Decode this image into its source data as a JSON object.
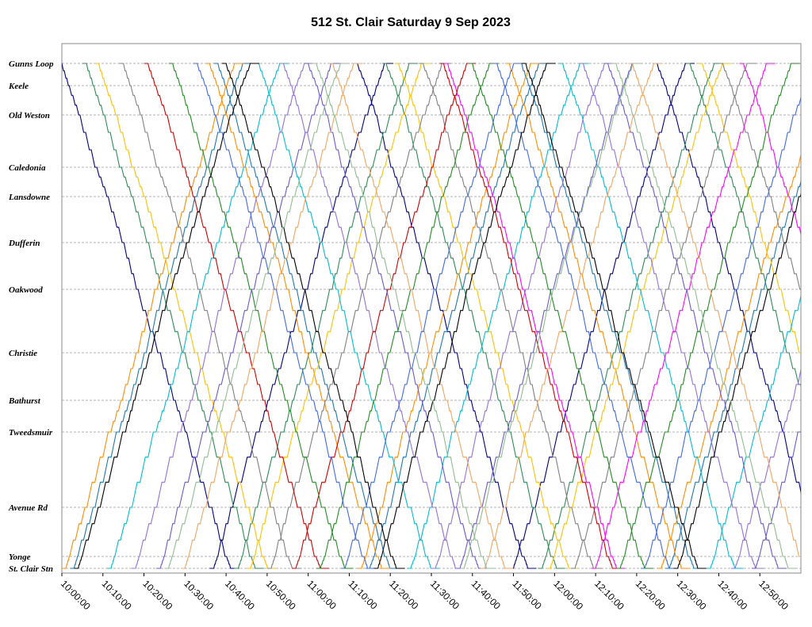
{
  "chart_data": {
    "type": "line",
    "title": "512 St. Clair Saturday 9 Sep 2023",
    "xlabel": "",
    "ylabel": "",
    "x_range": [
      "10:00:00",
      "13:00:00"
    ],
    "x_ticks": [
      "10:00:00",
      "10:10:00",
      "10:20:00",
      "10:30:00",
      "10:40:00",
      "10:50:00",
      "11:00:00",
      "11:10:00",
      "11:20:00",
      "11:30:00",
      "11:40:00",
      "11:50:00",
      "12:00:00",
      "12:10:00",
      "12:20:00",
      "12:30:00",
      "12:40:00",
      "12:50:00"
    ],
    "stops": [
      "Gunns Loop",
      "Keele",
      "Old Weston",
      "Caledonia",
      "Lansdowne",
      "Dufferin",
      "Oakwood",
      "Christie",
      "Bathurst",
      "Tweedsmuir",
      "Avenue Rd",
      "Yonge",
      "St. Clair Stn"
    ],
    "grid": "horizontal dashed at stops",
    "legend": "none",
    "series_colors": [
      "#000080",
      "#1f77b4",
      "#2e8b57",
      "#ff8c00",
      "#ffc000",
      "#00bcd4",
      "#808080",
      "#9370db",
      "#ff00ff",
      "#cc0000",
      "#6a5acd",
      "#228b22",
      "#f4a460",
      "#4169e1",
      "#000000",
      "#8fbc8f"
    ],
    "trips": [
      {
        "color": "#000080",
        "start": "10:00:00",
        "dir": "east"
      },
      {
        "color": "#000080",
        "start": "10:37:00",
        "dir": "west"
      },
      {
        "color": "#000080",
        "start": "11:12:00",
        "dir": "east"
      },
      {
        "color": "#000080",
        "start": "11:50:00",
        "dir": "west"
      },
      {
        "color": "#000080",
        "start": "12:25:00",
        "dir": "east"
      },
      {
        "color": "#1f77b4",
        "start": "10:03:00",
        "dir": "west"
      },
      {
        "color": "#1f77b4",
        "start": "10:38:00",
        "dir": "east"
      },
      {
        "color": "#1f77b4",
        "start": "11:15:00",
        "dir": "west"
      },
      {
        "color": "#1f77b4",
        "start": "11:52:00",
        "dir": "east"
      },
      {
        "color": "#1f77b4",
        "start": "12:28:00",
        "dir": "west"
      },
      {
        "color": "#2e8b57",
        "start": "10:06:00",
        "dir": "east"
      },
      {
        "color": "#2e8b57",
        "start": "10:43:00",
        "dir": "west"
      },
      {
        "color": "#2e8b57",
        "start": "11:19:00",
        "dir": "east"
      },
      {
        "color": "#2e8b57",
        "start": "11:57:00",
        "dir": "west"
      },
      {
        "color": "#2e8b57",
        "start": "12:33:00",
        "dir": "east"
      },
      {
        "color": "#ff8c00",
        "start": "10:01:00",
        "dir": "west"
      },
      {
        "color": "#ff8c00",
        "start": "10:36:00",
        "dir": "east"
      },
      {
        "color": "#ff8c00",
        "start": "11:13:00",
        "dir": "west"
      },
      {
        "color": "#ff8c00",
        "start": "11:49:00",
        "dir": "east"
      },
      {
        "color": "#ff8c00",
        "start": "12:26:00",
        "dir": "west"
      },
      {
        "color": "#ffc000",
        "start": "10:09:00",
        "dir": "east"
      },
      {
        "color": "#ffc000",
        "start": "10:46:00",
        "dir": "west"
      },
      {
        "color": "#ffc000",
        "start": "11:22:00",
        "dir": "east"
      },
      {
        "color": "#ffc000",
        "start": "11:59:00",
        "dir": "west"
      },
      {
        "color": "#ffc000",
        "start": "12:36:00",
        "dir": "east"
      },
      {
        "color": "#00bcd4",
        "start": "10:12:00",
        "dir": "west"
      },
      {
        "color": "#00bcd4",
        "start": "10:48:00",
        "dir": "east"
      },
      {
        "color": "#00bcd4",
        "start": "11:25:00",
        "dir": "west"
      },
      {
        "color": "#00bcd4",
        "start": "12:02:00",
        "dir": "east"
      },
      {
        "color": "#00bcd4",
        "start": "12:38:00",
        "dir": "west"
      },
      {
        "color": "#808080",
        "start": "10:15:00",
        "dir": "east"
      },
      {
        "color": "#808080",
        "start": "10:51:00",
        "dir": "west"
      },
      {
        "color": "#808080",
        "start": "11:28:00",
        "dir": "east"
      },
      {
        "color": "#808080",
        "start": "12:05:00",
        "dir": "west"
      },
      {
        "color": "#808080",
        "start": "12:41:00",
        "dir": "east"
      },
      {
        "color": "#9370db",
        "start": "10:18:00",
        "dir": "west"
      },
      {
        "color": "#9370db",
        "start": "10:54:00",
        "dir": "east"
      },
      {
        "color": "#9370db",
        "start": "11:31:00",
        "dir": "west"
      },
      {
        "color": "#9370db",
        "start": "12:07:00",
        "dir": "east"
      },
      {
        "color": "#9370db",
        "start": "12:44:00",
        "dir": "west"
      },
      {
        "color": "#ff00ff",
        "start": "11:34:00",
        "dir": "east"
      },
      {
        "color": "#ff00ff",
        "start": "12:10:00",
        "dir": "west"
      },
      {
        "color": "#ff00ff",
        "start": "12:46:00",
        "dir": "east"
      },
      {
        "color": "#cc0000",
        "start": "10:21:00",
        "dir": "east"
      },
      {
        "color": "#cc0000",
        "start": "10:57:00",
        "dir": "west"
      },
      {
        "color": "#cc0000",
        "start": "11:33:00",
        "dir": "east"
      },
      {
        "color": "#6a5acd",
        "start": "10:24:00",
        "dir": "west"
      },
      {
        "color": "#6a5acd",
        "start": "11:00:00",
        "dir": "east"
      },
      {
        "color": "#6a5acd",
        "start": "11:37:00",
        "dir": "west"
      },
      {
        "color": "#6a5acd",
        "start": "12:13:00",
        "dir": "east"
      },
      {
        "color": "#6a5acd",
        "start": "12:49:00",
        "dir": "west"
      },
      {
        "color": "#228b22",
        "start": "10:27:00",
        "dir": "east"
      },
      {
        "color": "#228b22",
        "start": "11:03:00",
        "dir": "west"
      },
      {
        "color": "#228b22",
        "start": "11:40:00",
        "dir": "east"
      },
      {
        "color": "#228b22",
        "start": "12:16:00",
        "dir": "west"
      },
      {
        "color": "#f4a460",
        "start": "10:30:00",
        "dir": "west"
      },
      {
        "color": "#f4a460",
        "start": "11:06:00",
        "dir": "east"
      },
      {
        "color": "#f4a460",
        "start": "11:43:00",
        "dir": "west"
      },
      {
        "color": "#f4a460",
        "start": "12:19:00",
        "dir": "east"
      },
      {
        "color": "#4169e1",
        "start": "10:33:00",
        "dir": "east"
      },
      {
        "color": "#4169e1",
        "start": "11:09:00",
        "dir": "west"
      },
      {
        "color": "#4169e1",
        "start": "11:46:00",
        "dir": "east"
      },
      {
        "color": "#4169e1",
        "start": "12:22:00",
        "dir": "west"
      },
      {
        "color": "#000000",
        "start": "10:04:00",
        "dir": "west"
      },
      {
        "color": "#000000",
        "start": "10:40:00",
        "dir": "east"
      },
      {
        "color": "#000000",
        "start": "11:17:00",
        "dir": "west"
      },
      {
        "color": "#000000",
        "start": "11:53:00",
        "dir": "east"
      },
      {
        "color": "#000000",
        "start": "12:30:00",
        "dir": "west"
      },
      {
        "color": "#8fbc8f",
        "start": "10:26:00",
        "dir": "west"
      },
      {
        "color": "#8fbc8f",
        "start": "11:02:00",
        "dir": "east"
      },
      {
        "color": "#8fbc8f",
        "start": "11:38:00",
        "dir": "west"
      },
      {
        "color": "#8fbc8f",
        "start": "12:15:00",
        "dir": "east"
      }
    ]
  }
}
